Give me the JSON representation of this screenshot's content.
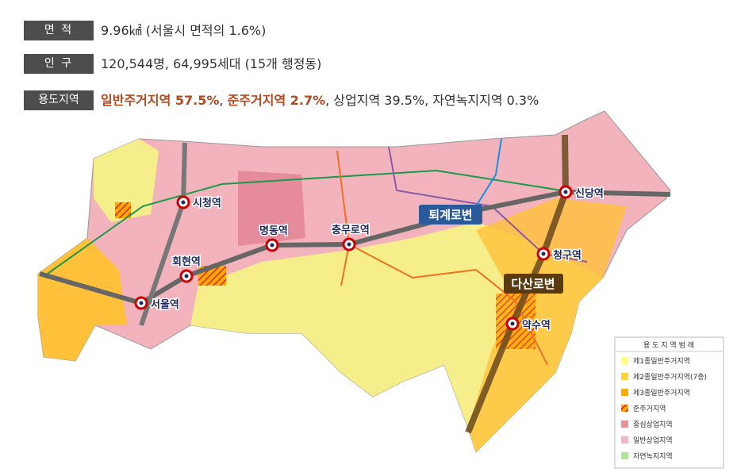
{
  "info": [
    {
      "label": "면 적",
      "value": "9.96㎢ (서울시 면적의 1.6%)"
    },
    {
      "label": "인 구",
      "value": "120,544명, 64,995세대 (15개 행정동)"
    },
    {
      "label": "용도지역",
      "parts": [
        {
          "text": "일반주거지역 57.5%",
          "color": "#b5471c"
        },
        {
          "text": ", ",
          "color": "#333333"
        },
        {
          "text": "준주거지역 2.7%",
          "color": "#b5471c"
        },
        {
          "text": ", 상업지역 39.5%, 자연녹지지역 0.3%",
          "color": "#333333"
        }
      ]
    }
  ],
  "stations": [
    "시청역",
    "회현역",
    "서울역",
    "명동역",
    "충무로역",
    "신당역",
    "청구역",
    "약수역"
  ],
  "roads": [
    "퇴계로변",
    "다산로변"
  ],
  "legend": {
    "title": "용 도 지 역 범 례",
    "items": [
      {
        "label": "제1종일반주거지역",
        "color": "#ffff80"
      },
      {
        "label": "제2종일반주거지역(7층)",
        "color": "#ffd633"
      },
      {
        "label": "제3종일반주거지역",
        "color": "#ffaa00"
      },
      {
        "label": "준주거지역",
        "color": "url(#hatch)"
      },
      {
        "label": "중심상업지역",
        "color": "#e8909a"
      },
      {
        "label": "일반상업지역",
        "color": "#f4b6c2"
      },
      {
        "label": "자연녹지지역",
        "color": "#b6e39b"
      }
    ]
  }
}
